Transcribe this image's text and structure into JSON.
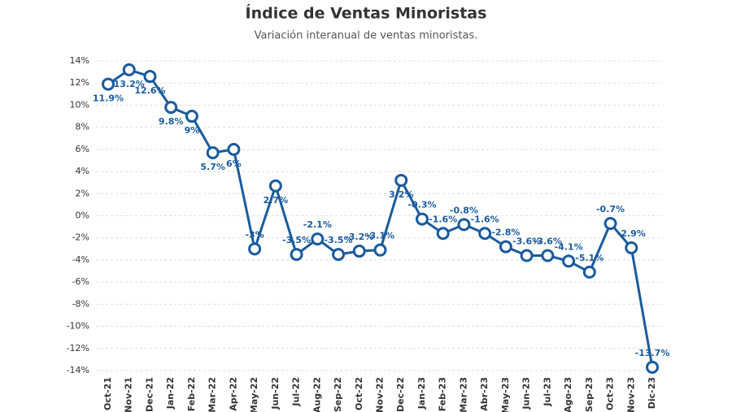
{
  "chart_data": {
    "type": "line",
    "title": "Índice de Ventas Minoristas",
    "subtitle": "Variación interanual de ventas minoristas.",
    "categories": [
      "Oct-21",
      "Nov-21",
      "Dec-21",
      "Jan-22",
      "Feb-22",
      "Mar-22",
      "Apr-22",
      "May-22",
      "Jun-22",
      "Jul-22",
      "Aug-22",
      "Sep-22",
      "Oct-22",
      "Nov-22",
      "Dec-22",
      "Jan-23",
      "Feb-23",
      "Mar-23",
      "Abr-23",
      "May-23",
      "Jun-23",
      "Jul-23",
      "Ago-23",
      "Sep-23",
      "Oct-23",
      "Nov-23",
      "Dic-23"
    ],
    "values": [
      11.9,
      13.2,
      12.6,
      9.8,
      9,
      5.7,
      6,
      -3,
      2.7,
      -3.5,
      -2.1,
      -3.5,
      -3.2,
      -3.1,
      3.2,
      -0.3,
      -1.6,
      -0.8,
      -1.6,
      -2.8,
      -3.6,
      -3.6,
      -4.1,
      -5.1,
      -0.7,
      -2.9,
      -13.7
    ],
    "value_labels": [
      "11.9%",
      "13.2%",
      "12.6%",
      "9.8%",
      "9%",
      "5.7%",
      "6%",
      "-3%",
      "2.7%",
      "-3.5%",
      "-2.1%",
      "-3.5%",
      "-3.2%",
      "-3.1%",
      "3.2%",
      "-0.3%",
      "-1.6%",
      "-0.8%",
      "-1.6%",
      "-2.8%",
      "-3.6%",
      "-3.6%",
      "-4.1%",
      "-5.1%",
      "-0.7%",
      "-2.9%",
      "-13.7%"
    ],
    "color": "#1a5b9c",
    "ylim": [
      -14,
      14
    ],
    "yticks": [
      {
        "value": 14,
        "label": "14%"
      },
      {
        "value": 12,
        "label": "12%"
      },
      {
        "value": 10,
        "label": "10%"
      },
      {
        "value": 8,
        "label": "8%"
      },
      {
        "value": 6,
        "label": "6%"
      },
      {
        "value": 4,
        "label": "4%"
      },
      {
        "value": 2,
        "label": "2%"
      },
      {
        "value": 0,
        "label": "0%"
      },
      {
        "value": -2,
        "label": "-2%"
      },
      {
        "value": -4,
        "label": "-4%"
      },
      {
        "value": -6,
        "label": "-6%"
      },
      {
        "value": -8,
        "label": "-8%"
      },
      {
        "value": -10,
        "label": "-10%"
      },
      {
        "value": -12,
        "label": "-12%"
      },
      {
        "value": -14,
        "label": "-14%"
      }
    ],
    "grid": true
  }
}
